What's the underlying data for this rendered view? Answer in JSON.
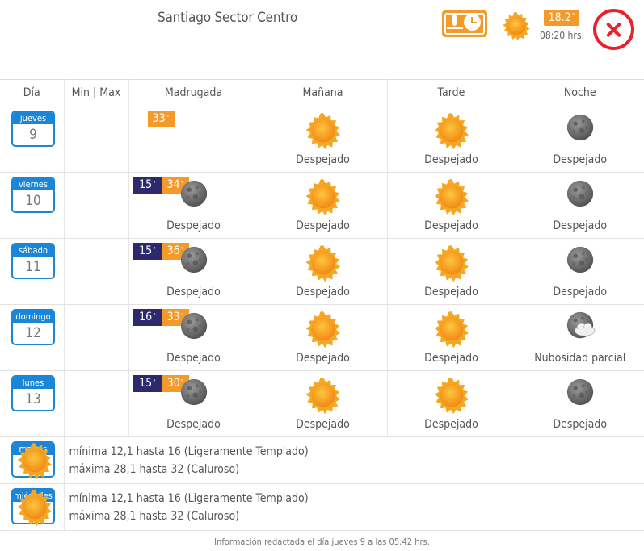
{
  "header": {
    "title": "Santiago Sector Centro",
    "current_temp": "18.2",
    "degree": "°",
    "time": "08:20 hrs."
  },
  "table": {
    "columns": [
      "Día",
      "Min | Max",
      "Madrugada",
      "Mañana",
      "Tarde",
      "Noche"
    ]
  },
  "days": [
    {
      "name": "jueves",
      "num": "9",
      "min": "",
      "max": "33",
      "madrugada": {
        "icon": "",
        "label": ""
      },
      "manana": {
        "icon": "sun-icon",
        "label": "Despejado"
      },
      "tarde": {
        "icon": "sun-icon",
        "label": "Despejado"
      },
      "noche": {
        "icon": "moon-icon",
        "label": "Despejado"
      }
    },
    {
      "name": "viernes",
      "num": "10",
      "min": "15",
      "max": "34",
      "madrugada": {
        "icon": "moon-icon",
        "label": "Despejado"
      },
      "manana": {
        "icon": "sun-icon",
        "label": "Despejado"
      },
      "tarde": {
        "icon": "sun-icon",
        "label": "Despejado"
      },
      "noche": {
        "icon": "moon-icon",
        "label": "Despejado"
      }
    },
    {
      "name": "sábado",
      "num": "11",
      "min": "15",
      "max": "36",
      "madrugada": {
        "icon": "moon-icon",
        "label": "Despejado"
      },
      "manana": {
        "icon": "sun-icon",
        "label": "Despejado"
      },
      "tarde": {
        "icon": "sun-icon",
        "label": "Despejado"
      },
      "noche": {
        "icon": "moon-icon",
        "label": "Despejado"
      }
    },
    {
      "name": "domingo",
      "num": "12",
      "min": "16",
      "max": "33",
      "madrugada": {
        "icon": "moon-icon",
        "label": "Despejado"
      },
      "manana": {
        "icon": "sun-icon",
        "label": "Despejado"
      },
      "tarde": {
        "icon": "sun-icon",
        "label": "Despejado"
      },
      "noche": {
        "icon": "moon-cloud-icon",
        "label": "Nubosidad parcial"
      }
    },
    {
      "name": "lunes",
      "num": "13",
      "min": "15",
      "max": "30",
      "madrugada": {
        "icon": "moon-icon",
        "label": "Despejado"
      },
      "manana": {
        "icon": "sun-icon",
        "label": "Despejado"
      },
      "tarde": {
        "icon": "sun-icon",
        "label": "Despejado"
      },
      "noche": {
        "icon": "moon-icon",
        "label": "Despejado"
      }
    }
  ],
  "extended": [
    {
      "name": "martes",
      "num": "14",
      "icon": "sun-icon",
      "line1": "mínima 12,1 hasta 16 (Ligeramente Templado)",
      "line2": "máxima 28,1 hasta 32 (Caluroso)"
    },
    {
      "name": "miércoles",
      "num": "15",
      "icon": "sun-icon",
      "line1": "mínima 12,1 hasta 16 (Ligeramente Templado)",
      "line2": "máxima 28,1 hasta 32 (Caluroso)"
    }
  ],
  "footer": "Información redactada el día jueves 9 a las 05:42 hrs.",
  "colors": {
    "accent_orange": "#f39a2a",
    "min_navy": "#2c2a6c",
    "date_blue": "#1b86d8",
    "close_red": "#e4232a"
  }
}
